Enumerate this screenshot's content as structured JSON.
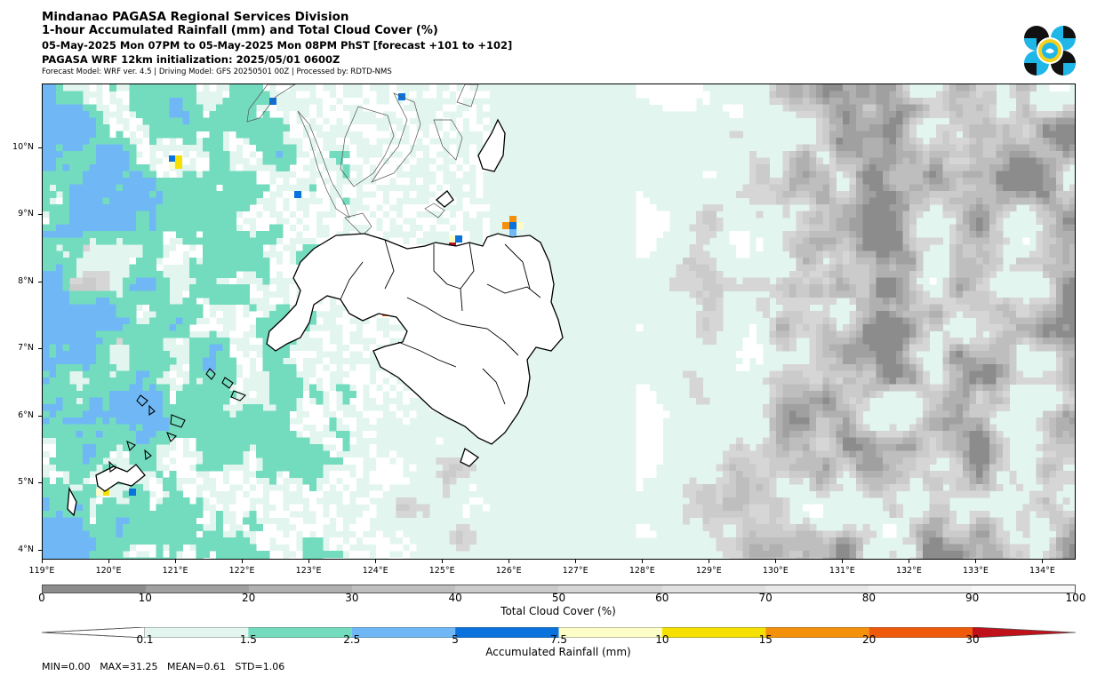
{
  "header": {
    "title": "Mindanao PAGASA Regional Services Division",
    "subtitle": "1-hour Accumulated Rainfall (mm) and Total Cloud Cover (%)",
    "period": "05-May-2025 Mon 07PM to 05-May-2025 Mon 08PM PhST [forecast +101 to +102]",
    "init": "PAGASA WRF 12km initialization: 2025/05/01 0600Z",
    "meta": "Forecast Model: WRF ver. 4.5 | Driving Model: GFS 20250501 00Z | Processed by: RDTD-NMS"
  },
  "logo": {
    "icon": "pagasa-logo-icon",
    "colors": [
      "#1fb6e8",
      "#111111",
      "#f4d11a"
    ]
  },
  "map": {
    "extent_lon": [
      119.0,
      134.5
    ],
    "extent_lat": [
      3.85,
      10.95
    ],
    "lat_labels": [
      "10°N",
      "9°N",
      "8°N",
      "7°N",
      "6°N",
      "5°N",
      "4°N"
    ],
    "lon_labels": [
      "119°E",
      "120°E",
      "121°E",
      "122°E",
      "123°E",
      "124°E",
      "125°E",
      "126°E",
      "127°E",
      "128°E",
      "129°E",
      "130°E",
      "131°E",
      "132°E",
      "133°E",
      "134°E"
    ]
  },
  "cloud_colorbar": {
    "title": "Total Cloud Cover (%)",
    "ticks": [
      "0",
      "10",
      "20",
      "30",
      "40",
      "50",
      "60",
      "70",
      "80",
      "90",
      "100"
    ],
    "colors": [
      "#8c8c8c",
      "#a0a0a0",
      "#b0b0b0",
      "#bebebe",
      "#cbcbcb",
      "#d6d6d6",
      "#e0e0e0",
      "#e9e9e9",
      "#f1f1f1",
      "#f8f8f8"
    ]
  },
  "rain_colorbar": {
    "title": "Accumulated Rainfall (mm)",
    "ticks": [
      "0.1",
      "1.5",
      "2.5",
      "5",
      "7.5",
      "10",
      "15",
      "20",
      "30"
    ],
    "colors": [
      "#e2f5ee",
      "#73dbbe",
      "#6fb8f5",
      "#0a72dc",
      "#fdfdc8",
      "#f5e000",
      "#f5900a",
      "#ee5a0a",
      "#c0101a"
    ]
  },
  "stats": {
    "min_label": "MIN=0.00",
    "max_label": "MAX=31.25",
    "mean_label": "MEAN=0.61",
    "std_label": "STD=1.06"
  }
}
